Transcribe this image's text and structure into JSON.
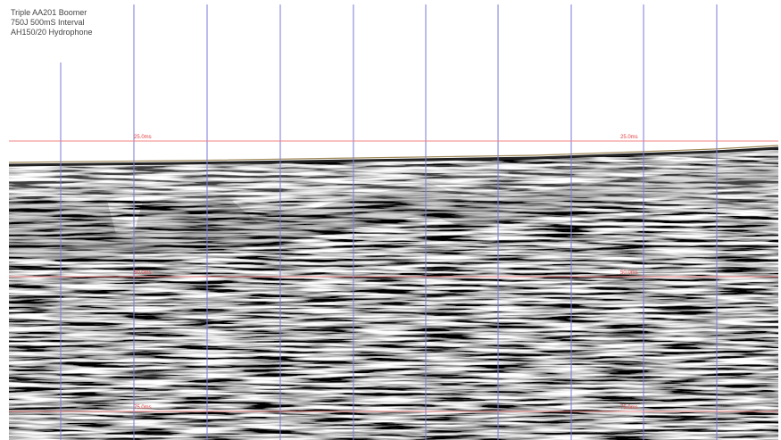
{
  "header": {
    "lines": [
      "Triple AA201 Boomer",
      "750J 500mS Interval",
      "AH150/20 Hydrophone"
    ]
  },
  "depth_markers": [
    {
      "labels": [
        "25.0ms",
        "25.0ms"
      ]
    },
    {
      "labels": [
        "50.0ms",
        "50.0ms"
      ]
    },
    {
      "labels": [
        "75.0ms",
        "75.0ms"
      ]
    }
  ]
}
